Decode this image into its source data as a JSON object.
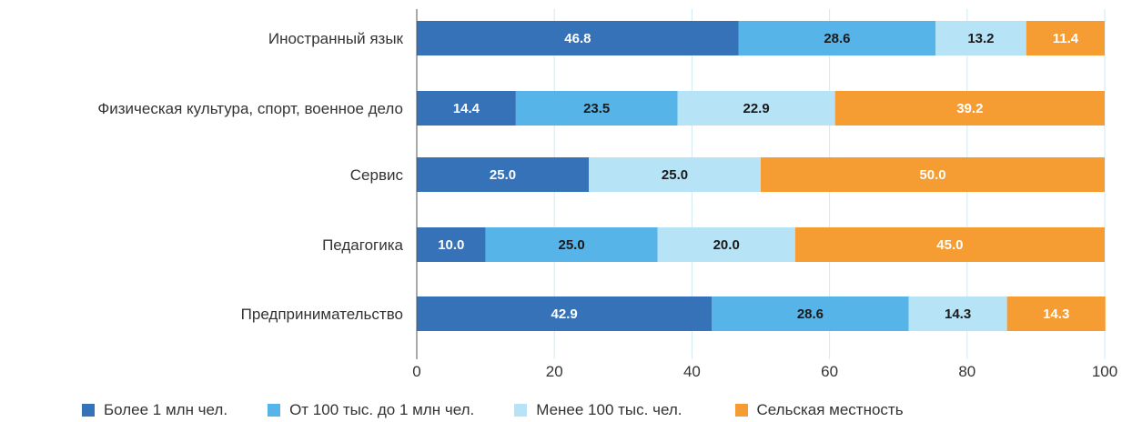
{
  "chart_data": {
    "type": "bar",
    "orientation": "horizontal",
    "stacked": true,
    "categories": [
      "Иностранный язык",
      "Физическая культура, спорт, военное дело",
      "Сервис",
      "Педагогика",
      "Предпринимательство"
    ],
    "series": [
      {
        "name": "Более 1 млн чел.",
        "color": "#3572b8",
        "label_color": "#ffffff",
        "values": [
          46.8,
          14.4,
          25.0,
          10.0,
          42.9
        ],
        "labels": [
          "46.8",
          "14.4",
          "25.0",
          "10.0",
          "42.9"
        ]
      },
      {
        "name": "От 100 тыс. до 1 млн чел.",
        "color": "#56b4e9",
        "label_color": "#1a1a1a",
        "values": [
          28.6,
          23.5,
          0,
          25.0,
          28.6
        ],
        "labels": [
          "28.6",
          "23.5",
          "",
          "25.0",
          "28.6"
        ]
      },
      {
        "name": "Менее 100 тыс. чел.",
        "color": "#b7e3f7",
        "label_color": "#1a1a1a",
        "values": [
          13.2,
          22.9,
          25.0,
          20.0,
          14.3
        ],
        "labels": [
          "13.2",
          "22.9",
          "25.0",
          "20.0",
          "14.3"
        ]
      },
      {
        "name": "Сельская местность",
        "color": "#f59c32",
        "label_color": "#ffffff",
        "values": [
          11.4,
          39.2,
          50.0,
          45.0,
          14.3
        ],
        "labels": [
          "11.4",
          "39.2",
          "50.0",
          "45.0",
          "14.3"
        ]
      }
    ],
    "xlim": [
      0,
      100
    ],
    "xticks": [
      "0",
      "20",
      "40",
      "60",
      "80",
      "100"
    ],
    "grid": true,
    "legend_position": "bottom",
    "gridline_color": "#cfe9f7"
  }
}
